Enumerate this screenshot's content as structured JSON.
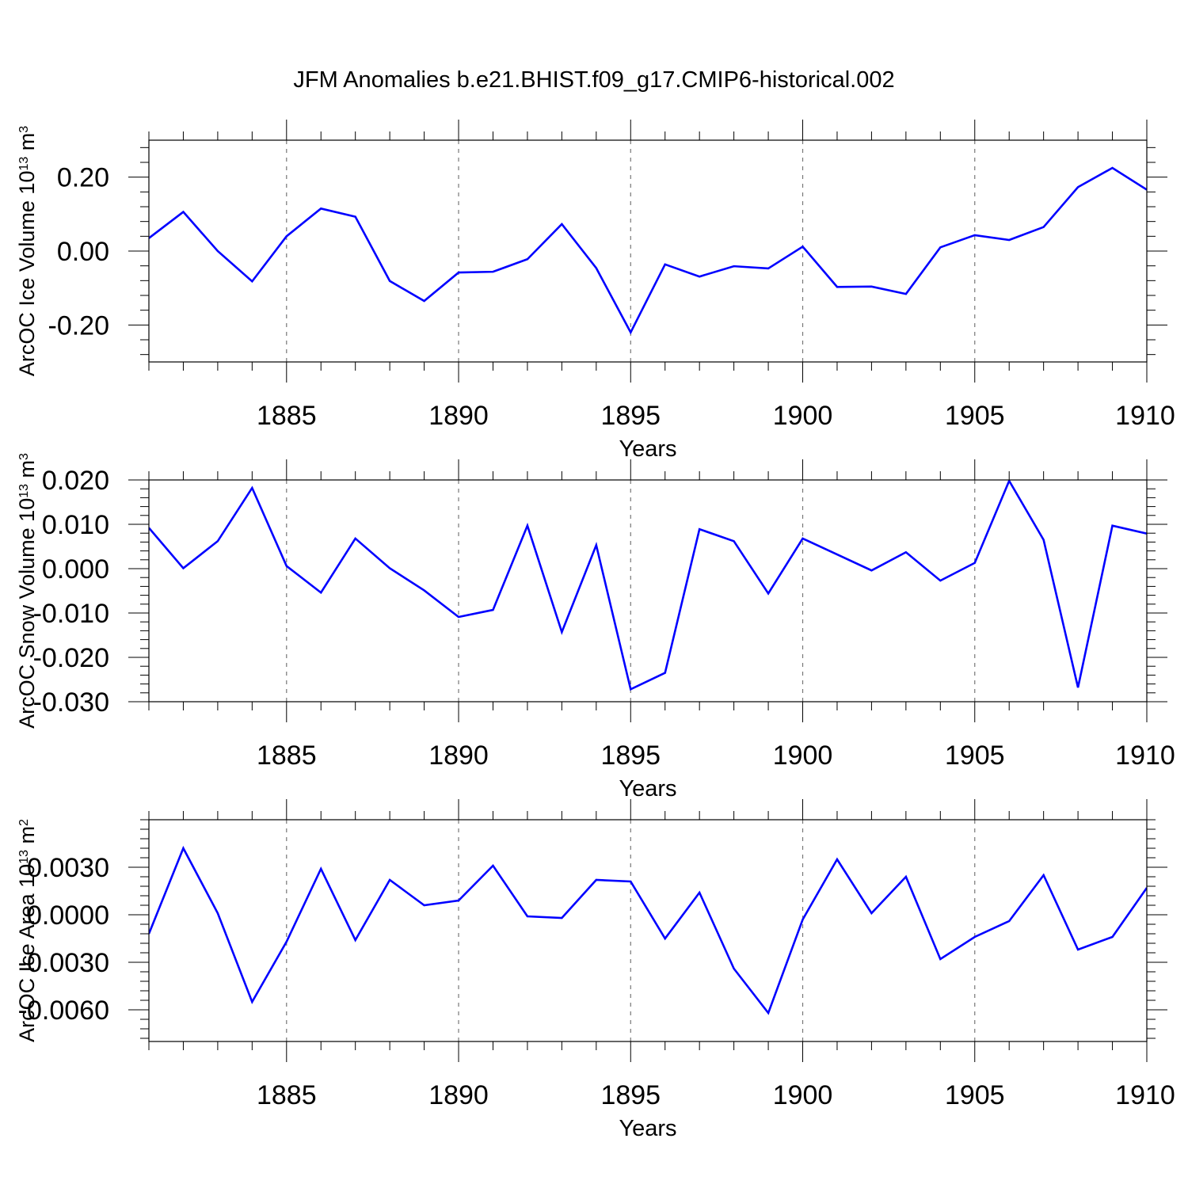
{
  "chart_title": "JFM Anomalies b.e21.BHIST.f09_g17.CMIP6-historical.002",
  "colors": {
    "series": "#0000ff",
    "axis": "#000000",
    "grid": "#777777"
  },
  "chart_data": [
    {
      "type": "line",
      "title": "JFM Anomalies b.e21.BHIST.f09_g17.CMIP6-historical.002",
      "xlabel": "Years",
      "ylabel": "ArcOC Ice Volume 10",
      "ylabel_exp": "13",
      "ylabel_unit": " m",
      "ylabel_unit_exp": "3",
      "xlim": [
        1881,
        1910
      ],
      "ylim": [
        -0.3,
        0.3
      ],
      "x_ticks": [
        1885,
        1890,
        1895,
        1900,
        1905,
        1910
      ],
      "x_tick_labels": [
        "1885",
        "1890",
        "1895",
        "1900",
        "1905",
        "1910"
      ],
      "y_ticks": [
        0.2,
        0.0,
        -0.2
      ],
      "y_tick_labels": [
        "0.20",
        "0.00",
        "-0.20"
      ],
      "x": [
        1881,
        1882,
        1883,
        1884,
        1885,
        1886,
        1887,
        1888,
        1889,
        1890,
        1891,
        1892,
        1893,
        1894,
        1895,
        1896,
        1897,
        1898,
        1899,
        1900,
        1901,
        1902,
        1903,
        1904,
        1905,
        1906,
        1907,
        1908,
        1909,
        1910
      ],
      "values": [
        0.035,
        0.106,
        0.0,
        -0.082,
        0.04,
        0.115,
        0.093,
        -0.081,
        -0.135,
        -0.058,
        -0.056,
        -0.022,
        0.073,
        -0.046,
        -0.22,
        -0.036,
        -0.069,
        -0.041,
        -0.047,
        0.012,
        -0.097,
        -0.096,
        -0.116,
        0.01,
        0.043,
        0.03,
        0.065,
        0.173,
        0.225,
        0.166
      ]
    },
    {
      "type": "line",
      "xlabel": "Years",
      "ylabel": "ArcOC Snow Volume 10",
      "ylabel_exp": "13",
      "ylabel_unit": " m",
      "ylabel_unit_exp": "3",
      "xlim": [
        1881,
        1910
      ],
      "ylim": [
        -0.03,
        0.02
      ],
      "x_ticks": [
        1885,
        1890,
        1895,
        1900,
        1905,
        1910
      ],
      "x_tick_labels": [
        "1885",
        "1890",
        "1895",
        "1900",
        "1905",
        "1910"
      ],
      "y_ticks": [
        0.02,
        0.01,
        0.0,
        -0.01,
        -0.02,
        -0.03
      ],
      "y_tick_labels": [
        "0.020",
        "0.010",
        "0.000",
        "-0.010",
        "-0.020",
        "-0.030"
      ],
      "x": [
        1881,
        1882,
        1883,
        1884,
        1885,
        1886,
        1887,
        1888,
        1889,
        1890,
        1891,
        1892,
        1893,
        1894,
        1895,
        1896,
        1897,
        1898,
        1899,
        1900,
        1901,
        1902,
        1903,
        1904,
        1905,
        1906,
        1907,
        1908,
        1909,
        1910
      ],
      "values": [
        0.0092,
        0.0001,
        0.0062,
        0.0182,
        0.0006,
        -0.0054,
        0.0068,
        0.0001,
        -0.0049,
        -0.0109,
        -0.0093,
        0.0097,
        -0.0143,
        0.0053,
        -0.0272,
        -0.0235,
        0.0089,
        0.0062,
        -0.0056,
        0.0068,
        0.0032,
        -0.0004,
        0.0037,
        -0.0027,
        0.0013,
        0.0198,
        0.0065,
        -0.0268,
        0.0097,
        0.0079
      ]
    },
    {
      "type": "line",
      "xlabel": "Years",
      "ylabel": "ArcOC Ice Area 10",
      "ylabel_exp": "13",
      "ylabel_unit": " m",
      "ylabel_unit_exp": "2",
      "xlim": [
        1881,
        1910
      ],
      "ylim": [
        -0.008,
        0.006
      ],
      "x_ticks": [
        1885,
        1890,
        1895,
        1900,
        1905,
        1910
      ],
      "x_tick_labels": [
        "1885",
        "1890",
        "1895",
        "1900",
        "1905",
        "1910"
      ],
      "y_ticks": [
        0.003,
        0.0,
        -0.003,
        -0.006
      ],
      "y_tick_labels": [
        "0.0030",
        "0.0000",
        "-0.0030",
        "-0.0060"
      ],
      "x": [
        1881,
        1882,
        1883,
        1884,
        1885,
        1886,
        1887,
        1888,
        1889,
        1890,
        1891,
        1892,
        1893,
        1894,
        1895,
        1896,
        1897,
        1898,
        1899,
        1900,
        1901,
        1902,
        1903,
        1904,
        1905,
        1906,
        1907,
        1908,
        1909,
        1910
      ],
      "values": [
        -0.0012,
        0.0042,
        0.0001,
        -0.0055,
        -0.0017,
        0.0029,
        -0.0016,
        0.0022,
        0.0006,
        0.0009,
        0.0031,
        -0.0001,
        -0.0002,
        0.0022,
        0.0021,
        -0.0015,
        0.0014,
        -0.0034,
        -0.0062,
        -0.0003,
        0.0035,
        0.0001,
        0.0024,
        -0.0028,
        -0.0014,
        -0.0004,
        0.0025,
        -0.0022,
        -0.0014,
        0.0017
      ]
    }
  ]
}
